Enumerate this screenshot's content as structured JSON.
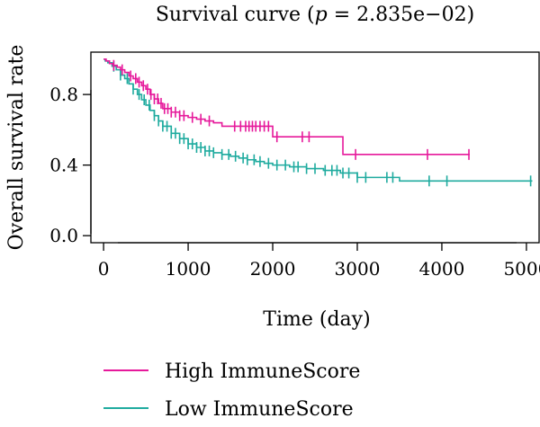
{
  "chart_data": {
    "type": "line",
    "title_prefix": "Survival curve (",
    "title_p": "p",
    "title_suffix": " = 2.835e−02)",
    "xlabel": "Time (day)",
    "ylabel": "Overall survival rate",
    "xlim": [
      -150,
      5150
    ],
    "ylim": [
      -0.04,
      1.04
    ],
    "xticks": [
      0,
      1000,
      2000,
      3000,
      4000,
      5000
    ],
    "xtick_labels": [
      "0",
      "1000",
      "2000",
      "3000",
      "4000",
      "5000"
    ],
    "yticks": [
      0.0,
      0.4,
      0.8
    ],
    "ytick_labels": [
      "0.0",
      "0.4",
      "0.8"
    ],
    "legend_position": "bottom-left",
    "series": [
      {
        "name": "High ImmuneScore",
        "color": "#e6199b",
        "steps": [
          [
            0,
            1.0
          ],
          [
            30,
            0.99
          ],
          [
            70,
            0.975
          ],
          [
            110,
            0.965
          ],
          [
            160,
            0.955
          ],
          [
            200,
            0.94
          ],
          [
            250,
            0.925
          ],
          [
            300,
            0.905
          ],
          [
            350,
            0.89
          ],
          [
            400,
            0.87
          ],
          [
            450,
            0.85
          ],
          [
            500,
            0.83
          ],
          [
            550,
            0.8
          ],
          [
            600,
            0.775
          ],
          [
            650,
            0.75
          ],
          [
            700,
            0.72
          ],
          [
            800,
            0.7
          ],
          [
            900,
            0.68
          ],
          [
            1000,
            0.67
          ],
          [
            1100,
            0.66
          ],
          [
            1200,
            0.65
          ],
          [
            1300,
            0.64
          ],
          [
            1400,
            0.62
          ],
          [
            2000,
            0.56
          ],
          [
            2600,
            0.56
          ],
          [
            2830,
            0.46
          ],
          [
            4330,
            0.46
          ]
        ],
        "censor_times": [
          120,
          220,
          320,
          380,
          420,
          470,
          520,
          560,
          600,
          640,
          680,
          720,
          760,
          800,
          850,
          900,
          950,
          1050,
          1150,
          1250,
          1550,
          1620,
          1680,
          1720,
          1760,
          1800,
          1850,
          1900,
          1950,
          2050,
          2350,
          2430,
          2980,
          3830,
          4320
        ]
      },
      {
        "name": "Low ImmuneScore",
        "color": "#1fab9f",
        "steps": [
          [
            0,
            1.0
          ],
          [
            20,
            0.99
          ],
          [
            50,
            0.98
          ],
          [
            100,
            0.96
          ],
          [
            150,
            0.94
          ],
          [
            200,
            0.91
          ],
          [
            250,
            0.89
          ],
          [
            300,
            0.86
          ],
          [
            350,
            0.83
          ],
          [
            400,
            0.8
          ],
          [
            450,
            0.77
          ],
          [
            500,
            0.74
          ],
          [
            550,
            0.71
          ],
          [
            600,
            0.68
          ],
          [
            650,
            0.65
          ],
          [
            700,
            0.62
          ],
          [
            800,
            0.58
          ],
          [
            900,
            0.55
          ],
          [
            1000,
            0.52
          ],
          [
            1100,
            0.5
          ],
          [
            1200,
            0.48
          ],
          [
            1300,
            0.47
          ],
          [
            1400,
            0.46
          ],
          [
            1500,
            0.45
          ],
          [
            1600,
            0.44
          ],
          [
            1700,
            0.43
          ],
          [
            1800,
            0.42
          ],
          [
            1900,
            0.41
          ],
          [
            2000,
            0.4
          ],
          [
            2200,
            0.39
          ],
          [
            2400,
            0.38
          ],
          [
            2600,
            0.37
          ],
          [
            2800,
            0.355
          ],
          [
            3000,
            0.33
          ],
          [
            3500,
            0.31
          ],
          [
            5070,
            0.31
          ]
        ],
        "censor_times": [
          120,
          200,
          280,
          350,
          420,
          480,
          540,
          600,
          650,
          700,
          750,
          800,
          850,
          900,
          950,
          1000,
          1050,
          1100,
          1150,
          1200,
          1250,
          1300,
          1400,
          1480,
          1560,
          1650,
          1700,
          1780,
          1850,
          1950,
          2050,
          2150,
          2250,
          2300,
          2400,
          2500,
          2620,
          2700,
          2760,
          2830,
          2900,
          3000,
          3100,
          3350,
          3420,
          3850,
          4060,
          5050
        ]
      }
    ]
  }
}
